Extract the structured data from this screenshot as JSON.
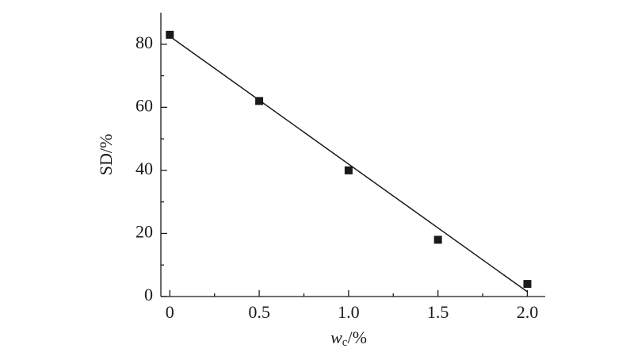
{
  "chart_data": {
    "type": "scatter",
    "xlabel": {
      "symbol": "w",
      "subscript": "c",
      "unit": "/%"
    },
    "ylabel": "SD/%",
    "series": [
      {
        "x": [
          0,
          0.5,
          1.0,
          1.5,
          2.0
        ],
        "values": [
          83,
          62,
          40,
          18,
          4
        ],
        "color": "#1a1a1a",
        "marker": "square"
      },
      {
        "x": [
          0,
          2.0
        ],
        "values": [
          82.5,
          1.5
        ],
        "color": "#1a1a1a",
        "marker": "line"
      }
    ],
    "xlim": [
      -0.05,
      2.1
    ],
    "ylim": [
      0,
      90
    ],
    "xticks": [
      0,
      0.5,
      {
        "value": 1,
        "label": "1.0"
      },
      1.5,
      {
        "value": 2,
        "label": "2.0"
      }
    ],
    "xminorticks": [
      0.25,
      0.75,
      1.25,
      1.75
    ],
    "yticks": [
      0,
      20,
      40,
      60,
      80
    ],
    "yminorticks": [
      10,
      30,
      50,
      70
    ]
  }
}
